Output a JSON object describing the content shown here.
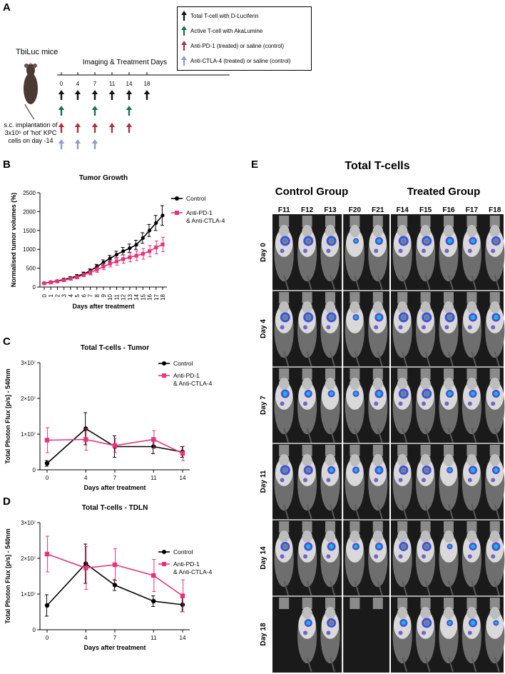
{
  "panel_labels": {
    "a": "A",
    "b": "B",
    "c": "C",
    "d": "D",
    "e": "E"
  },
  "panel_a": {
    "mouse_title": "TbiLuc mice",
    "implant_lines": [
      "s.c. implantation of",
      "3x10⁵ of 'hot' KPC",
      "cells on day -14"
    ],
    "timeline_title": "Imaging & Treatment Days",
    "days": [
      "0",
      "4",
      "7",
      "11",
      "14",
      "18"
    ],
    "legend": [
      {
        "label": "Total T-cell with D-Luciferin",
        "color": "#111111"
      },
      {
        "label": "Active T-cell with AkaLumine",
        "color": "#1f6b55"
      },
      {
        "label": "Anti-PD-1 (treated) or saline (control)",
        "color": "#a8323c"
      },
      {
        "label": "Anti-CTLA-4 (treated) or saline (control)",
        "color": "#8f9cc7"
      }
    ],
    "rows": {
      "total": [
        "0",
        "4",
        "7",
        "11",
        "14",
        "18"
      ],
      "active": [
        "0",
        "7",
        "14"
      ],
      "pd1": [
        "0",
        "4",
        "7",
        "11",
        "14"
      ],
      "ctla4": [
        "0",
        "4",
        "7"
      ]
    }
  },
  "panel_e": {
    "title": "Total T-cells",
    "control_label": "Control Group",
    "treated_label": "Treated Group",
    "mice": [
      "F11",
      "F12",
      "F13",
      "F20",
      "F21",
      "F14",
      "F15",
      "F16",
      "F17",
      "F18"
    ],
    "days": [
      "Day 0",
      "Day 4",
      "Day 7",
      "Day 11",
      "Day 14",
      "Day 18"
    ]
  },
  "chart_data": [
    {
      "type": "line",
      "title": "Tumor Growth",
      "xlabel": "Days after treatment",
      "ylabel": "Normalised tumor volumes (%)",
      "x": [
        0,
        1,
        2,
        3,
        4,
        5,
        6,
        7,
        8,
        9,
        10,
        11,
        12,
        13,
        14,
        15,
        16,
        17,
        18
      ],
      "xticks": [
        "0",
        "1",
        "2",
        "3",
        "4",
        "5",
        "6",
        "7",
        "8",
        "9",
        "10",
        "11",
        "12",
        "13",
        "14",
        "15",
        "16",
        "17",
        "18"
      ],
      "ylim": [
        0,
        2500
      ],
      "yticks": [
        0,
        500,
        1000,
        1500,
        2000,
        2500
      ],
      "ytick_labels": [
        "0",
        "500",
        "1000",
        "1500",
        "2000",
        "2500"
      ],
      "legend_position": "top-right",
      "series": [
        {
          "name": "Control",
          "color": "#000000",
          "marker": "circle",
          "values": [
            100,
            130,
            160,
            200,
            240,
            290,
            350,
            430,
            540,
            650,
            760,
            860,
            950,
            1030,
            1120,
            1300,
            1500,
            1700,
            1900
          ],
          "errors": [
            15,
            20,
            25,
            30,
            35,
            40,
            45,
            50,
            60,
            70,
            80,
            90,
            100,
            110,
            120,
            140,
            160,
            200,
            260
          ]
        },
        {
          "name": "Anti-PD-1\n& Anti-CTLA-4",
          "color": "#e6337a",
          "marker": "square",
          "values": [
            100,
            120,
            150,
            180,
            220,
            260,
            320,
            380,
            460,
            540,
            620,
            680,
            740,
            790,
            830,
            880,
            950,
            1050,
            1130
          ],
          "errors": [
            15,
            20,
            25,
            30,
            35,
            40,
            45,
            60,
            70,
            80,
            90,
            100,
            110,
            120,
            130,
            140,
            150,
            170,
            190
          ]
        }
      ]
    },
    {
      "type": "line",
      "title": "Total T-cells - Tumor",
      "xlabel": "Days after treatment",
      "ylabel": "Total Photon Flux [p/s] - 540nm",
      "x": [
        0,
        4,
        7,
        11,
        14
      ],
      "xticks": [
        "0",
        "4",
        "7",
        "11",
        "14"
      ],
      "ylim": [
        0,
        30000000
      ],
      "yticks": [
        0,
        10000000,
        20000000,
        30000000
      ],
      "ytick_labels": [
        "0",
        "1×10⁷",
        "2×10⁷",
        "3×10⁷"
      ],
      "legend_position": "top-right",
      "series": [
        {
          "name": "Control",
          "color": "#000000",
          "marker": "circle",
          "values": [
            1800000,
            11500000,
            6500000,
            6500000,
            5000000
          ],
          "errors": [
            800000,
            4500000,
            3000000,
            2000000,
            1500000
          ]
        },
        {
          "name": "Anti-PD-1\n& Anti-CTLA-4",
          "color": "#e6337a",
          "marker": "square",
          "values": [
            8300000,
            8500000,
            6800000,
            8500000,
            4600000
          ],
          "errors": [
            3500000,
            3000000,
            2000000,
            2500000,
            2000000
          ]
        }
      ]
    },
    {
      "type": "line",
      "title": "Total T-cells - TDLN",
      "xlabel": "Days after treatment",
      "ylabel": "Total Photon Flux [p/s] - 540nm",
      "x": [
        0,
        4,
        7,
        11,
        14
      ],
      "xticks": [
        "0",
        "4",
        "7",
        "11",
        "14"
      ],
      "ylim": [
        0,
        30000000
      ],
      "yticks": [
        0,
        10000000,
        20000000,
        30000000
      ],
      "ytick_labels": [
        "0",
        "1×10⁷",
        "2×10⁷",
        "3×10⁷"
      ],
      "legend_position": "top-right",
      "series": [
        {
          "name": "Control",
          "color": "#000000",
          "marker": "circle",
          "values": [
            6800000,
            18500000,
            12500000,
            8000000,
            7000000
          ],
          "errors": [
            3000000,
            5500000,
            1500000,
            1500000,
            2000000
          ]
        },
        {
          "name": "Anti-PD-1\n& Anti-CTLA-4",
          "color": "#e6337a",
          "marker": "square",
          "values": [
            21200000,
            17300000,
            18200000,
            15200000,
            9500000
          ],
          "errors": [
            5000000,
            6000000,
            4500000,
            4500000,
            4500000
          ]
        }
      ]
    }
  ]
}
